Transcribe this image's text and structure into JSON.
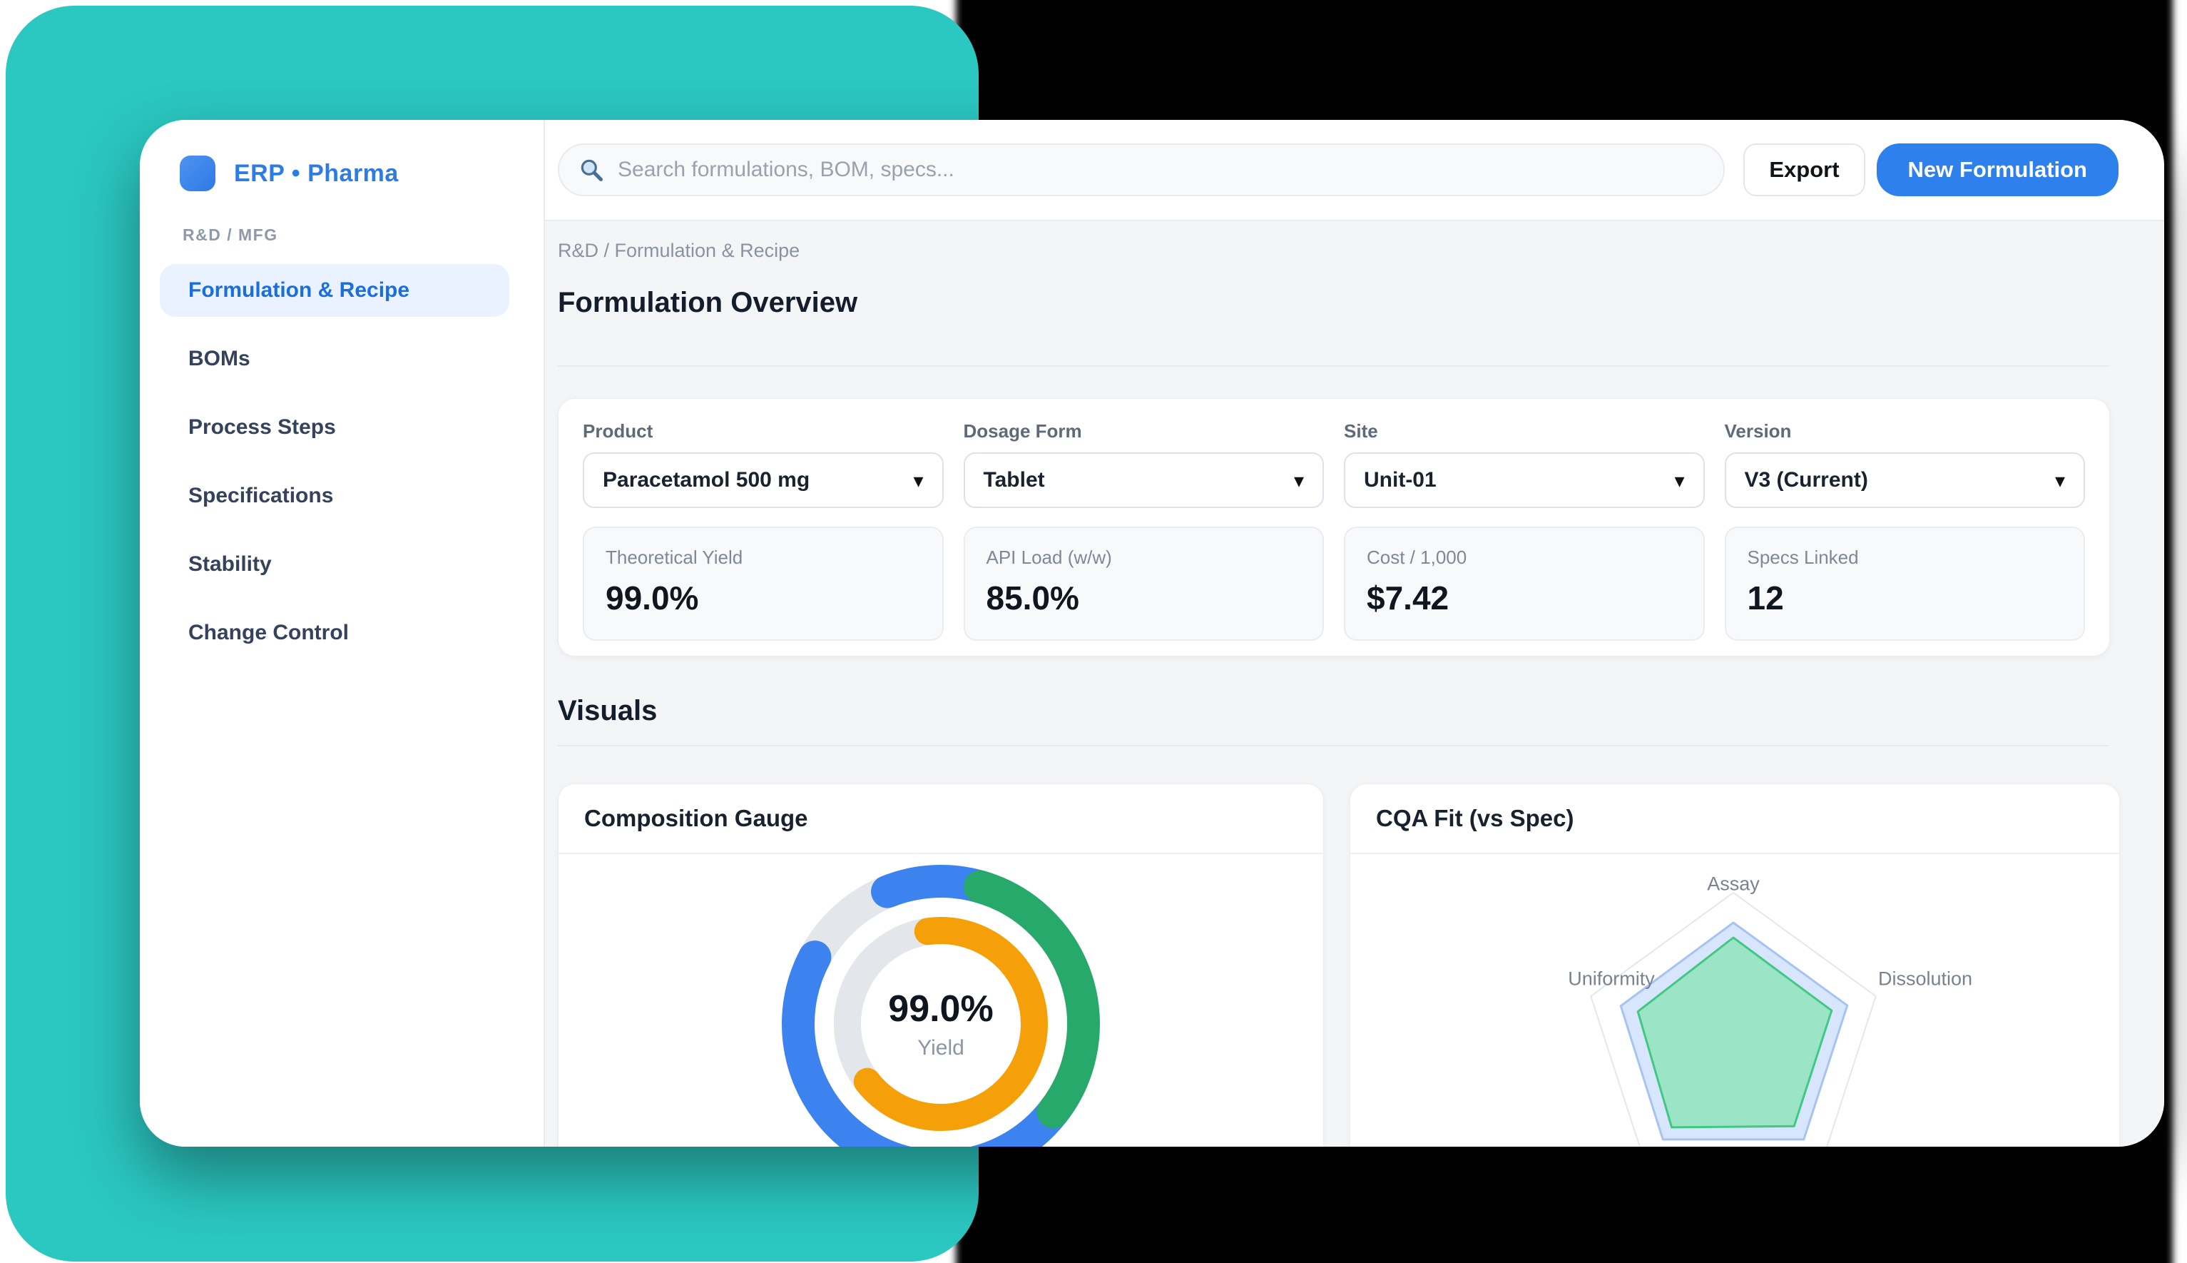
{
  "brand": {
    "app_title": "ERP • Pharma"
  },
  "sidebar": {
    "section_label": "R&D / MFG",
    "items": [
      {
        "label": "Formulation & Recipe",
        "active": true
      },
      {
        "label": "BOMs",
        "active": false
      },
      {
        "label": "Process Steps",
        "active": false
      },
      {
        "label": "Specifications",
        "active": false
      },
      {
        "label": "Stability",
        "active": false
      },
      {
        "label": "Change Control",
        "active": false
      }
    ]
  },
  "topbar": {
    "search_placeholder": "Search formulations, BOM, specs...",
    "search_icon": "magnifier-icon",
    "export_label": "Export",
    "new_formulation_label": "New Formulation"
  },
  "main": {
    "breadcrumb": "R&D / Formulation & Recipe",
    "overview_title": "Formulation Overview",
    "visuals_title": "Visuals",
    "fields": [
      {
        "label": "Product",
        "value": "Paracetamol 500 mg"
      },
      {
        "label": "Dosage Form",
        "value": "Tablet"
      },
      {
        "label": "Site",
        "value": "Unit-01"
      },
      {
        "label": "Version",
        "value": "V3 (Current)"
      }
    ],
    "stats": [
      {
        "label": "Theoretical Yield",
        "value": "99.0%"
      },
      {
        "label": "API Load (w/w)",
        "value": "85.0%"
      },
      {
        "label": "Cost / 1,000",
        "value": "$7.42"
      },
      {
        "label": "Specs Linked",
        "value": "12"
      }
    ]
  },
  "colors": {
    "accent_blue": "#2e80ec",
    "teal_background": "#2bc7c1",
    "active_item_bg": "#e9f2fe",
    "active_item_text": "#1a6fdc",
    "donut_blue": "#3c83f0",
    "donut_green": "#28a96c",
    "donut_orange": "#f5a009",
    "donut_track": "#e3e6ea"
  },
  "chart_data": [
    {
      "type": "donut",
      "title": "Composition Gauge",
      "center_value": "99.0%",
      "center_label": "Yield",
      "rings": [
        {
          "name": "outer",
          "radius": 200,
          "thickness": 46,
          "segments": [
            {
              "name": "track",
              "color": "#e3e6ea",
              "start_deg": 298,
              "end_deg": 338,
              "cap": "butt"
            },
            {
              "name": "blue-main",
              "color": "#3c83f0",
              "start_deg": 128,
              "end_deg": 298,
              "cap": "round"
            },
            {
              "name": "blue-top-cap",
              "color": "#3c83f0",
              "start_deg": 338,
              "end_deg": 378,
              "cap": "round"
            },
            {
              "name": "green",
              "color": "#28a96c",
              "start_deg": 16,
              "end_deg": 128,
              "cap": "round"
            }
          ]
        },
        {
          "name": "inner",
          "radius": 131,
          "thickness": 38,
          "segments": [
            {
              "name": "track",
              "color": "#e3e6ea",
              "start_deg": 232,
              "end_deg": 352,
              "cap": "butt"
            },
            {
              "name": "orange",
              "color": "#f5a009",
              "start_deg": -8,
              "end_deg": 232,
              "cap": "round"
            }
          ]
        }
      ]
    },
    {
      "type": "radar",
      "title": "CQA Fit (vs Spec)",
      "axes_total": 5,
      "visible_axis_labels": [
        "Assay",
        "Dissolution",
        "Uniformity"
      ],
      "max_value": 1.0,
      "grid": "outer-pentagon-only",
      "series": [
        {
          "name": "spec-envelope",
          "values": [
            0.8,
            0.8,
            0.8,
            0.8,
            0.79
          ],
          "fill": "rgba(59,130,246,0.20)",
          "stroke": "#a6c3f2"
        },
        {
          "name": "cqa-fit",
          "values": [
            0.7,
            0.69,
            0.69,
            0.7,
            0.67
          ],
          "fill": "rgba(94,226,143,0.50)",
          "stroke": "#43c783"
        }
      ]
    }
  ]
}
